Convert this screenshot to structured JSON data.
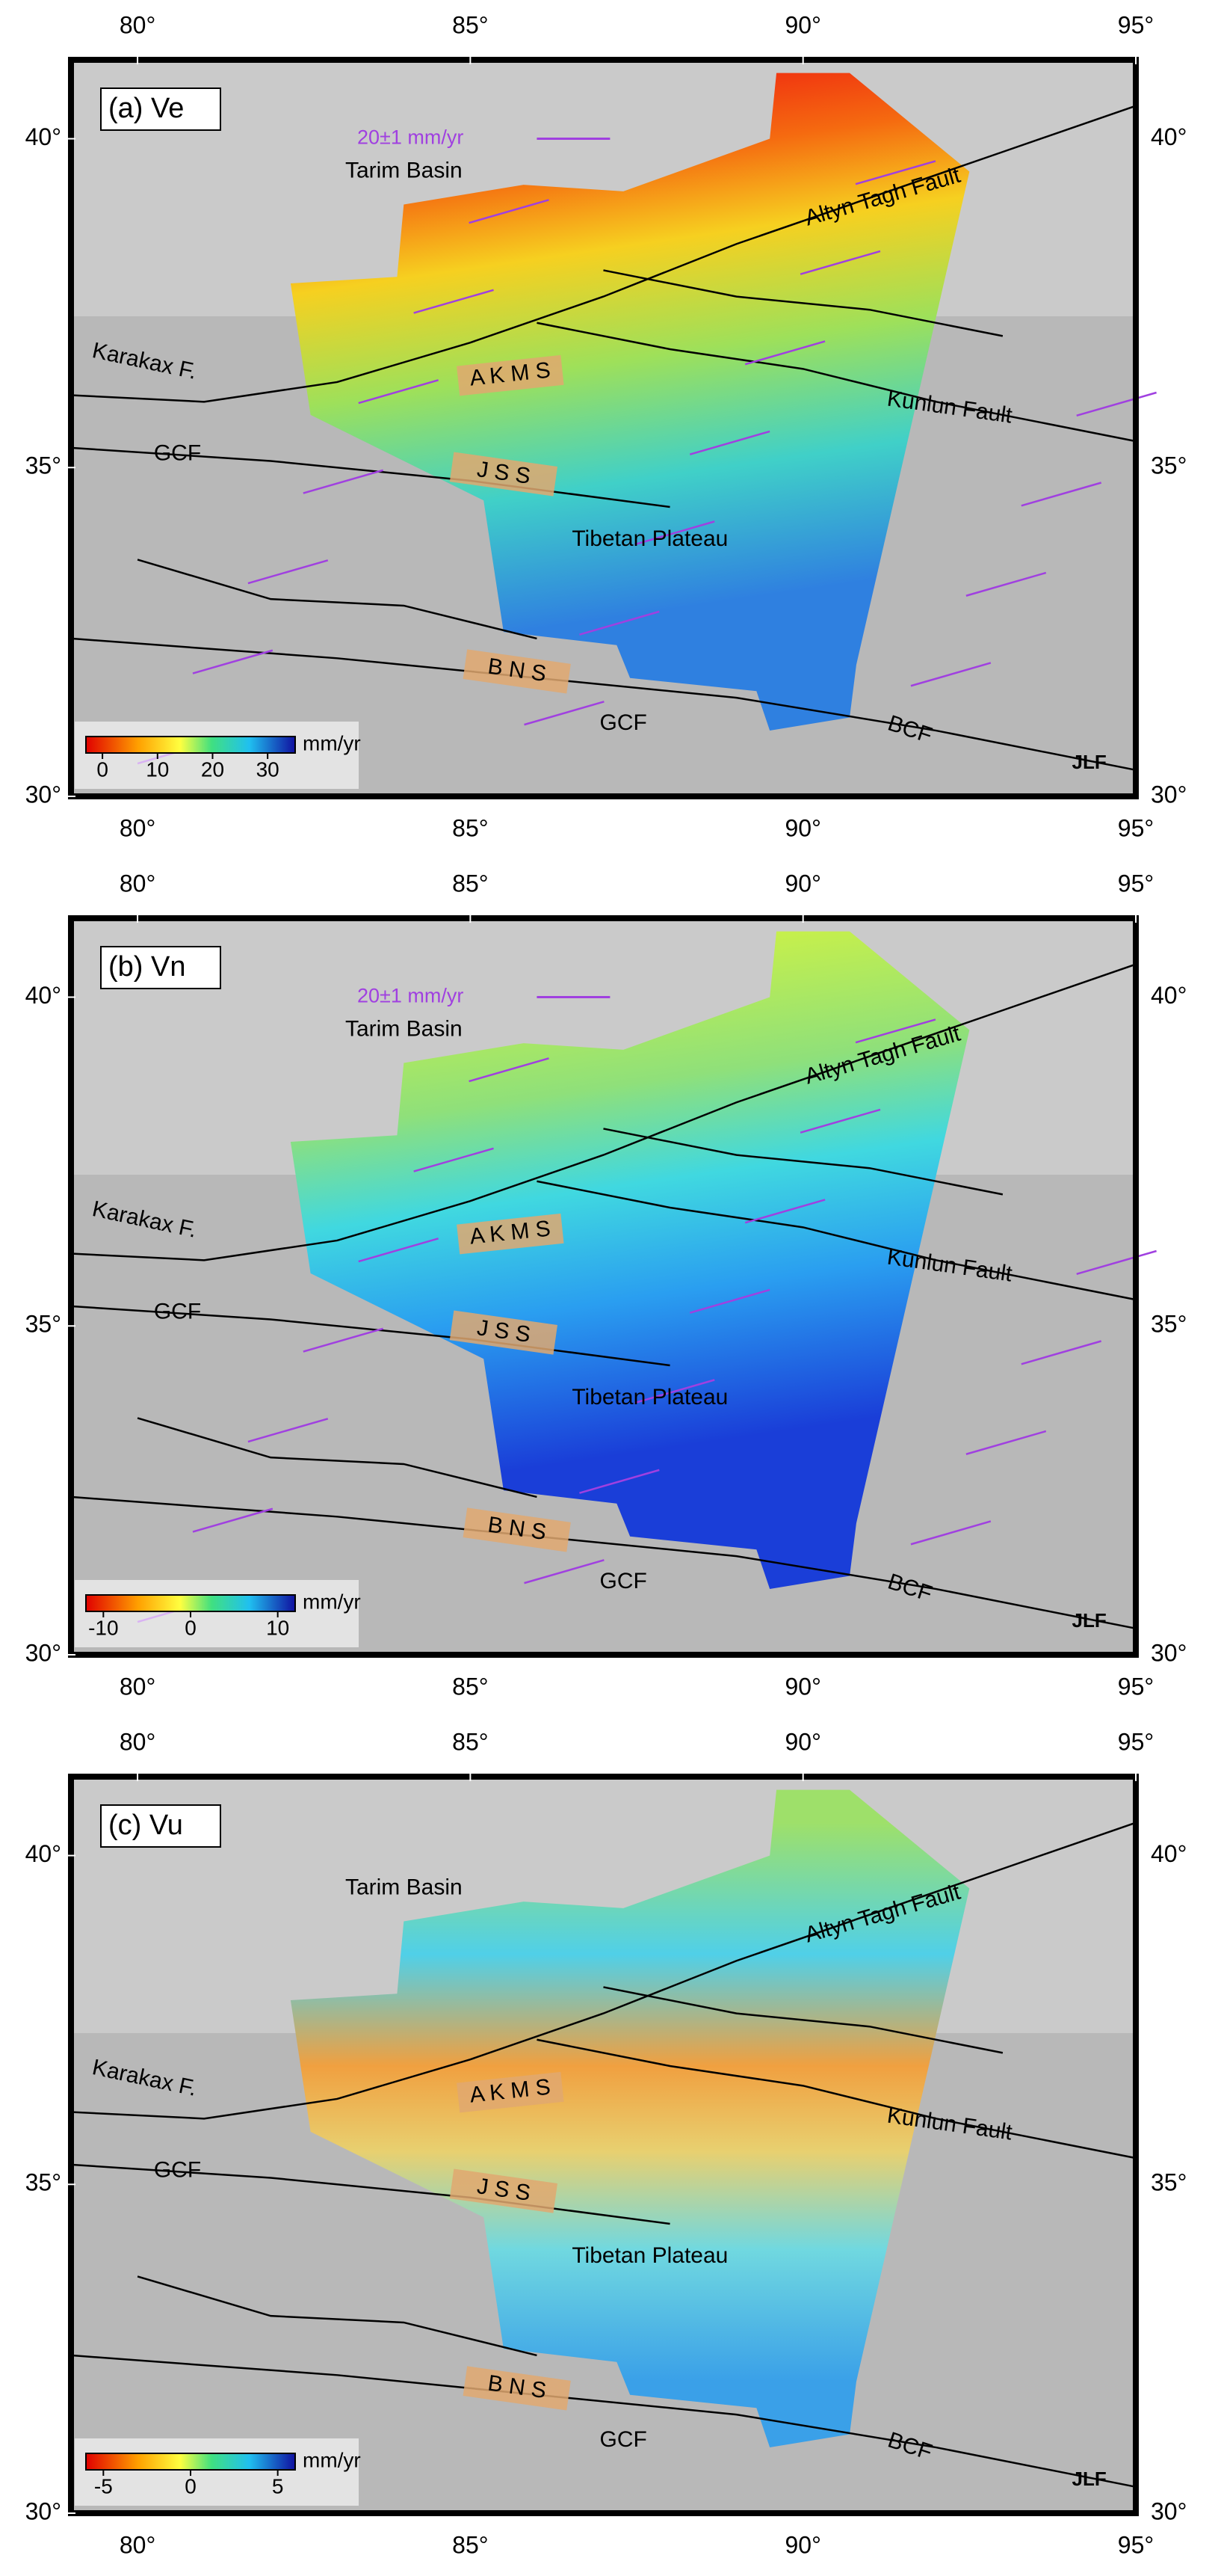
{
  "panels": [
    {
      "label": "(a) Ve",
      "lon_range": [
        79,
        95
      ],
      "lat_range": [
        30,
        41.2
      ],
      "lon_ticks": [
        {
          "value": 80,
          "label": "80°"
        },
        {
          "value": 85,
          "label": "85°"
        },
        {
          "value": 90,
          "label": "90°"
        },
        {
          "value": 95,
          "label": "95°"
        }
      ],
      "lat_ticks": [
        {
          "value": 30,
          "label": "30°"
        },
        {
          "value": 35,
          "label": "35°"
        },
        {
          "value": 40,
          "label": "40°"
        }
      ],
      "vector_scale": "20±1 mm/yr",
      "places": [
        "Tarim Basin",
        "Altyn Tagh Fault",
        "Karakax F.",
        "Kunlun Fault",
        "A K M S",
        "GCF",
        "J S S",
        "Tibetan Plateau",
        "B N S",
        "GCF",
        "BCF",
        "JLF"
      ],
      "colorbar": {
        "unit": "mm/yr",
        "range": [
          -3,
          35
        ],
        "ticks": [
          0,
          10,
          20,
          30
        ]
      }
    },
    {
      "label": "(b) Vn",
      "lon_range": [
        79,
        95
      ],
      "lat_range": [
        30,
        41.2
      ],
      "lon_ticks": [
        {
          "value": 80,
          "label": "80°"
        },
        {
          "value": 85,
          "label": "85°"
        },
        {
          "value": 90,
          "label": "90°"
        },
        {
          "value": 95,
          "label": "95°"
        }
      ],
      "lat_ticks": [
        {
          "value": 30,
          "label": "30°"
        },
        {
          "value": 35,
          "label": "35°"
        },
        {
          "value": 40,
          "label": "40°"
        }
      ],
      "vector_scale": "20±1 mm/yr",
      "places": [
        "Tarim Basin",
        "Altyn Tagh Fault",
        "Karakax F.",
        "Kunlun Fault",
        "A K M S",
        "GCF",
        "J S S",
        "Tibetan Plateau",
        "B N S",
        "GCF",
        "BCF",
        "JLF"
      ],
      "colorbar": {
        "unit": "mm/yr",
        "range": [
          -12,
          12
        ],
        "ticks": [
          -10,
          0,
          10
        ]
      }
    },
    {
      "label": "(c) Vu",
      "lon_range": [
        79,
        95
      ],
      "lat_range": [
        30,
        41.2
      ],
      "lon_ticks": [
        {
          "value": 80,
          "label": "80°"
        },
        {
          "value": 85,
          "label": "85°"
        },
        {
          "value": 90,
          "label": "90°"
        },
        {
          "value": 95,
          "label": "95°"
        }
      ],
      "lat_ticks": [
        {
          "value": 30,
          "label": "30°"
        },
        {
          "value": 35,
          "label": "35°"
        },
        {
          "value": 40,
          "label": "40°"
        }
      ],
      "places": [
        "Tarim Basin",
        "Altyn Tagh Fault",
        "Karakax F.",
        "Kunlun Fault",
        "A K M S",
        "GCF",
        "J S S",
        "Tibetan Plateau",
        "B N S",
        "GCF",
        "BCF",
        "JLF"
      ],
      "colorbar": {
        "unit": "mm/yr",
        "range": [
          -6,
          6
        ],
        "ticks": [
          -5,
          0,
          5
        ]
      }
    }
  ]
}
